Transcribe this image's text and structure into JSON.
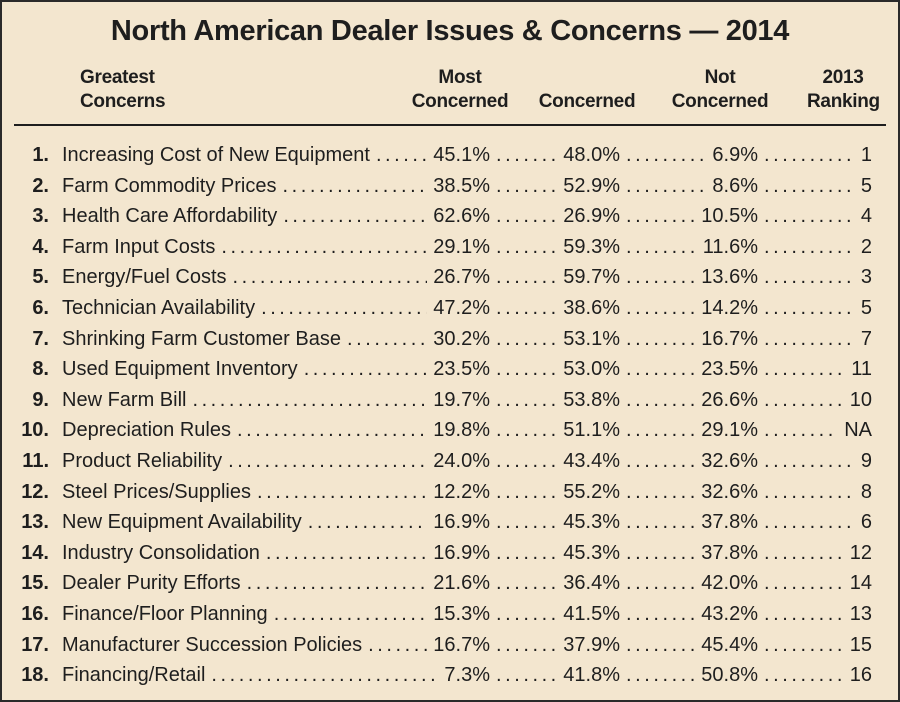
{
  "title": "North American Dealer Issues & Concerns — 2014",
  "headers": {
    "concerns": [
      "Greatest",
      "Concerns"
    ],
    "most": [
      "Most",
      "Concerned"
    ],
    "concerned": [
      "Concerned"
    ],
    "not": [
      "Not",
      "Concerned"
    ],
    "rank": [
      "2013",
      "Ranking"
    ]
  },
  "rows": [
    {
      "num": "1.",
      "label": "Increasing Cost of New Equipment",
      "most": "45.1%",
      "concerned": "48.0%",
      "not": "6.9%",
      "rank": "1"
    },
    {
      "num": "2.",
      "label": "Farm Commodity Prices",
      "most": "38.5%",
      "concerned": "52.9%",
      "not": "8.6%",
      "rank": "5"
    },
    {
      "num": "3.",
      "label": "Health Care Affordability",
      "most": "62.6%",
      "concerned": "26.9%",
      "not": "10.5%",
      "rank": "4"
    },
    {
      "num": "4.",
      "label": "Farm Input Costs",
      "most": "29.1%",
      "concerned": "59.3%",
      "not": "11.6%",
      "rank": "2"
    },
    {
      "num": "5.",
      "label": "Energy/Fuel Costs",
      "most": "26.7%",
      "concerned": "59.7%",
      "not": "13.6%",
      "rank": "3"
    },
    {
      "num": "6.",
      "label": "Technician Availability",
      "most": "47.2%",
      "concerned": "38.6%",
      "not": "14.2%",
      "rank": "5"
    },
    {
      "num": "7.",
      "label": "Shrinking Farm Customer Base",
      "most": "30.2%",
      "concerned": "53.1%",
      "not": "16.7%",
      "rank": "7"
    },
    {
      "num": "8.",
      "label": "Used Equipment Inventory",
      "most": "23.5%",
      "concerned": "53.0%",
      "not": "23.5%",
      "rank": "11"
    },
    {
      "num": "9.",
      "label": "New Farm Bill",
      "most": "19.7%",
      "concerned": "53.8%",
      "not": "26.6%",
      "rank": "10"
    },
    {
      "num": "10.",
      "label": "Depreciation Rules",
      "most": "19.8%",
      "concerned": "51.1%",
      "not": "29.1%",
      "rank": "NA"
    },
    {
      "num": "11.",
      "label": "Product Reliability",
      "most": "24.0%",
      "concerned": "43.4%",
      "not": "32.6%",
      "rank": "9"
    },
    {
      "num": "12.",
      "label": "Steel Prices/Supplies",
      "most": "12.2%",
      "concerned": "55.2%",
      "not": "32.6%",
      "rank": "8"
    },
    {
      "num": "13.",
      "label": "New Equipment Availability",
      "most": "16.9%",
      "concerned": "45.3%",
      "not": "37.8%",
      "rank": "6"
    },
    {
      "num": "14.",
      "label": "Industry Consolidation",
      "most": "16.9%",
      "concerned": "45.3%",
      "not": "37.8%",
      "rank": "12"
    },
    {
      "num": "15.",
      "label": "Dealer Purity Efforts",
      "most": "21.6%",
      "concerned": "36.4%",
      "not": "42.0%",
      "rank": "14"
    },
    {
      "num": "16.",
      "label": "Finance/Floor Planning",
      "most": "15.3%",
      "concerned": "41.5%",
      "not": "43.2%",
      "rank": "13"
    },
    {
      "num": "17.",
      "label": "Manufacturer Succession Policies",
      "most": "16.7%",
      "concerned": "37.9%",
      "not": "45.4%",
      "rank": "15"
    },
    {
      "num": "18.",
      "label": "Financing/Retail",
      "most": "7.3%",
      "concerned": "41.8%",
      "not": "50.8%",
      "rank": "16"
    }
  ]
}
